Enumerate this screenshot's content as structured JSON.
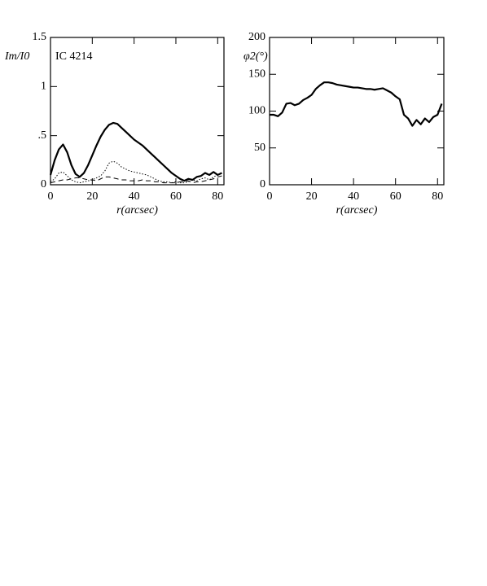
{
  "chart_data": [
    {
      "type": "line",
      "ylabel": "Im/I0",
      "xlabel": "r(arcsec)",
      "annotation": "IC 4214",
      "xlim": [
        0,
        83
      ],
      "ylim": [
        0,
        1.5
      ],
      "xticks": [
        0,
        20,
        40,
        60,
        80
      ],
      "yticks": [
        0,
        {
          "value": 0.5,
          "label": ".5"
        },
        1,
        1.5
      ],
      "x": [
        0,
        2,
        4,
        6,
        8,
        10,
        12,
        14,
        16,
        18,
        20,
        22,
        24,
        26,
        28,
        30,
        32,
        34,
        36,
        38,
        40,
        42,
        44,
        46,
        48,
        50,
        52,
        54,
        56,
        58,
        60,
        62,
        64,
        66,
        68,
        70,
        72,
        74,
        76,
        78,
        80,
        82
      ],
      "series": [
        {
          "color": "#000000",
          "style": "solid",
          "values": [
            0.1,
            0.25,
            0.36,
            0.41,
            0.33,
            0.2,
            0.11,
            0.08,
            0.12,
            0.2,
            0.3,
            0.4,
            0.49,
            0.56,
            0.61,
            0.63,
            0.62,
            0.58,
            0.54,
            0.5,
            0.46,
            0.43,
            0.4,
            0.36,
            0.32,
            0.28,
            0.24,
            0.2,
            0.16,
            0.12,
            0.09,
            0.06,
            0.04,
            0.06,
            0.05,
            0.08,
            0.09,
            0.12,
            0.1,
            0.13,
            0.1,
            0.12
          ]
        },
        {
          "color": "#000000",
          "style": "dotted",
          "values": [
            0.03,
            0.06,
            0.12,
            0.13,
            0.09,
            0.05,
            0.03,
            0.02,
            0.03,
            0.04,
            0.05,
            0.07,
            0.09,
            0.14,
            0.22,
            0.24,
            0.22,
            0.18,
            0.16,
            0.14,
            0.13,
            0.12,
            0.11,
            0.1,
            0.08,
            0.06,
            0.04,
            0.03,
            0.03,
            0.02,
            0.03,
            0.02,
            0.02,
            0.03,
            0.05,
            0.04,
            0.06,
            0.07,
            0.05,
            0.08,
            0.1,
            0.12
          ]
        },
        {
          "color": "#000000",
          "style": "dashed",
          "values": [
            0.02,
            0.03,
            0.04,
            0.05,
            0.05,
            0.06,
            0.07,
            0.07,
            0.06,
            0.05,
            0.05,
            0.04,
            0.06,
            0.08,
            0.08,
            0.07,
            0.06,
            0.05,
            0.05,
            0.04,
            0.04,
            0.04,
            0.05,
            0.04,
            0.04,
            0.03,
            0.03,
            0.02,
            0.02,
            0.02,
            0.02,
            0.03,
            0.03,
            0.04,
            0.02,
            0.03,
            0.03,
            0.04,
            0.05,
            0.06,
            0.08,
            0.09
          ]
        }
      ]
    },
    {
      "type": "line",
      "ylabel": "φ2(°)",
      "xlabel": "r(arcsec)",
      "xlim": [
        0,
        83
      ],
      "ylim": [
        0,
        200
      ],
      "xticks": [
        0,
        20,
        40,
        60,
        80
      ],
      "yticks": [
        0,
        50,
        100,
        150,
        200
      ],
      "x": [
        0,
        2,
        4,
        6,
        8,
        10,
        12,
        14,
        16,
        18,
        20,
        22,
        24,
        26,
        28,
        30,
        32,
        34,
        36,
        38,
        40,
        42,
        44,
        46,
        48,
        50,
        52,
        54,
        56,
        58,
        60,
        62,
        64,
        66,
        68,
        70,
        72,
        74,
        76,
        78,
        80,
        82
      ],
      "series": [
        {
          "color": "#000000",
          "style": "solid",
          "values": [
            95,
            95,
            93,
            98,
            110,
            111,
            108,
            110,
            115,
            118,
            122,
            130,
            135,
            139,
            139,
            138,
            136,
            135,
            134,
            133,
            132,
            132,
            131,
            130,
            130,
            129,
            130,
            131,
            128,
            125,
            120,
            116,
            95,
            90,
            80,
            88,
            82,
            90,
            85,
            92,
            95,
            110
          ]
        }
      ]
    }
  ]
}
